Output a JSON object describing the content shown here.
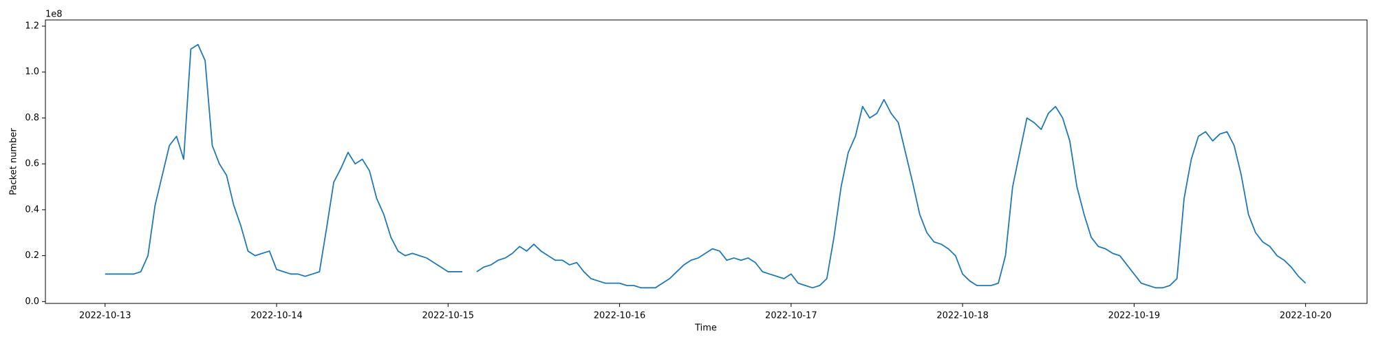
{
  "chart_data": {
    "type": "line",
    "x_label": "Time",
    "y_label": "Packet number",
    "y_offset_label": "1e8",
    "xlim": [
      "2022-10-12T15:39",
      "2022-10-20T08:36"
    ],
    "xticks": [
      "2022-10-13",
      "2022-10-14",
      "2022-10-15",
      "2022-10-16",
      "2022-10-17",
      "2022-10-18",
      "2022-10-19",
      "2022-10-20"
    ],
    "ylim": [
      -0.008,
      1.227
    ],
    "yticks": [
      {
        "value": 0,
        "label": "0.0"
      },
      0.2,
      0.4,
      0.6,
      0.8,
      {
        "value": 1,
        "label": "1.0"
      },
      1.2
    ],
    "grid": false,
    "series": [
      {
        "name": "Packet number",
        "color": "#1f77b4",
        "x": [
          "2022-10-13T00:00",
          "2022-10-13T01:00",
          "2022-10-13T02:00",
          "2022-10-13T03:00",
          "2022-10-13T04:00",
          "2022-10-13T05:00",
          "2022-10-13T06:00",
          "2022-10-13T07:00",
          "2022-10-13T08:00",
          "2022-10-13T09:00",
          "2022-10-13T10:00",
          "2022-10-13T11:00",
          "2022-10-13T12:00",
          "2022-10-13T13:00",
          "2022-10-13T14:00",
          "2022-10-13T15:00",
          "2022-10-13T16:00",
          "2022-10-13T17:00",
          "2022-10-13T18:00",
          "2022-10-13T19:00",
          "2022-10-13T20:00",
          "2022-10-13T21:00",
          "2022-10-13T22:00",
          "2022-10-13T23:00",
          "2022-10-14T00:00",
          "2022-10-14T01:00",
          "2022-10-14T02:00",
          "2022-10-14T03:00",
          "2022-10-14T04:00",
          "2022-10-14T05:00",
          "2022-10-14T06:00",
          "2022-10-14T07:00",
          "2022-10-14T08:00",
          "2022-10-14T09:00",
          "2022-10-14T10:00",
          "2022-10-14T11:00",
          "2022-10-14T12:00",
          "2022-10-14T13:00",
          "2022-10-14T14:00",
          "2022-10-14T15:00",
          "2022-10-14T16:00",
          "2022-10-14T17:00",
          "2022-10-14T18:00",
          "2022-10-14T19:00",
          "2022-10-14T20:00",
          "2022-10-14T21:00",
          "2022-10-14T22:00",
          "2022-10-14T23:00",
          "2022-10-15T00:00",
          "2022-10-15T01:00",
          "2022-10-15T02:00",
          "2022-10-15T03:00",
          "2022-10-15T04:00",
          "2022-10-15T05:00",
          "2022-10-15T06:00",
          "2022-10-15T07:00",
          "2022-10-15T08:00",
          "2022-10-15T09:00",
          "2022-10-15T10:00",
          "2022-10-15T11:00",
          "2022-10-15T12:00",
          "2022-10-15T13:00",
          "2022-10-15T14:00",
          "2022-10-15T15:00",
          "2022-10-15T16:00",
          "2022-10-15T17:00",
          "2022-10-15T18:00",
          "2022-10-15T19:00",
          "2022-10-15T20:00",
          "2022-10-15T21:00",
          "2022-10-15T22:00",
          "2022-10-15T23:00",
          "2022-10-16T00:00",
          "2022-10-16T01:00",
          "2022-10-16T02:00",
          "2022-10-16T03:00",
          "2022-10-16T04:00",
          "2022-10-16T05:00",
          "2022-10-16T06:00",
          "2022-10-16T07:00",
          "2022-10-16T08:00",
          "2022-10-16T09:00",
          "2022-10-16T10:00",
          "2022-10-16T11:00",
          "2022-10-16T12:00",
          "2022-10-16T13:00",
          "2022-10-16T14:00",
          "2022-10-16T15:00",
          "2022-10-16T16:00",
          "2022-10-16T17:00",
          "2022-10-16T18:00",
          "2022-10-16T19:00",
          "2022-10-16T20:00",
          "2022-10-16T21:00",
          "2022-10-16T22:00",
          "2022-10-16T23:00",
          "2022-10-17T00:00",
          "2022-10-17T01:00",
          "2022-10-17T02:00",
          "2022-10-17T03:00",
          "2022-10-17T04:00",
          "2022-10-17T05:00",
          "2022-10-17T06:00",
          "2022-10-17T07:00",
          "2022-10-17T08:00",
          "2022-10-17T09:00",
          "2022-10-17T10:00",
          "2022-10-17T11:00",
          "2022-10-17T12:00",
          "2022-10-17T13:00",
          "2022-10-17T14:00",
          "2022-10-17T15:00",
          "2022-10-17T16:00",
          "2022-10-17T17:00",
          "2022-10-17T18:00",
          "2022-10-17T19:00",
          "2022-10-17T20:00",
          "2022-10-17T21:00",
          "2022-10-17T22:00",
          "2022-10-17T23:00",
          "2022-10-18T00:00",
          "2022-10-18T01:00",
          "2022-10-18T02:00",
          "2022-10-18T03:00",
          "2022-10-18T04:00",
          "2022-10-18T05:00",
          "2022-10-18T06:00",
          "2022-10-18T07:00",
          "2022-10-18T08:00",
          "2022-10-18T09:00",
          "2022-10-18T10:00",
          "2022-10-18T11:00",
          "2022-10-18T12:00",
          "2022-10-18T13:00",
          "2022-10-18T14:00",
          "2022-10-18T15:00",
          "2022-10-18T16:00",
          "2022-10-18T17:00",
          "2022-10-18T18:00",
          "2022-10-18T19:00",
          "2022-10-18T20:00",
          "2022-10-18T21:00",
          "2022-10-18T22:00",
          "2022-10-18T23:00",
          "2022-10-19T00:00",
          "2022-10-19T01:00",
          "2022-10-19T02:00",
          "2022-10-19T03:00",
          "2022-10-19T04:00",
          "2022-10-19T05:00",
          "2022-10-19T06:00",
          "2022-10-19T07:00",
          "2022-10-19T08:00",
          "2022-10-19T09:00",
          "2022-10-19T10:00",
          "2022-10-19T11:00",
          "2022-10-19T12:00",
          "2022-10-19T13:00",
          "2022-10-19T14:00",
          "2022-10-19T15:00",
          "2022-10-19T16:00",
          "2022-10-19T17:00",
          "2022-10-19T18:00",
          "2022-10-19T19:00",
          "2022-10-19T20:00",
          "2022-10-19T21:00",
          "2022-10-19T22:00",
          "2022-10-19T23:00",
          "2022-10-20T00:00"
        ],
        "values": [
          0.12,
          0.12,
          0.12,
          0.12,
          0.12,
          0.13,
          0.2,
          0.42,
          0.55,
          0.68,
          0.72,
          0.62,
          1.1,
          1.12,
          1.05,
          0.68,
          0.6,
          0.55,
          0.42,
          0.33,
          0.22,
          0.2,
          0.21,
          0.22,
          0.14,
          0.13,
          0.12,
          0.12,
          0.11,
          0.12,
          0.13,
          0.32,
          0.52,
          0.58,
          0.65,
          0.6,
          0.62,
          0.57,
          0.45,
          0.38,
          0.28,
          0.22,
          0.2,
          0.21,
          0.2,
          0.19,
          0.17,
          0.15,
          0.13,
          0.13,
          0.13,
          null,
          0.13,
          0.15,
          0.16,
          0.18,
          0.19,
          0.21,
          0.24,
          0.22,
          0.25,
          0.22,
          0.2,
          0.18,
          0.18,
          0.16,
          0.17,
          0.13,
          0.1,
          0.09,
          0.08,
          0.08,
          0.08,
          0.07,
          0.07,
          0.06,
          0.06,
          0.06,
          0.08,
          0.1,
          0.13,
          0.16,
          0.18,
          0.19,
          0.21,
          0.23,
          0.22,
          0.18,
          0.19,
          0.18,
          0.19,
          0.17,
          0.13,
          0.12,
          0.11,
          0.1,
          0.12,
          0.08,
          0.07,
          0.06,
          0.07,
          0.1,
          0.28,
          0.5,
          0.65,
          0.72,
          0.85,
          0.8,
          0.82,
          0.88,
          0.82,
          0.78,
          0.65,
          0.52,
          0.38,
          0.3,
          0.26,
          0.25,
          0.23,
          0.2,
          0.12,
          0.09,
          0.07,
          0.07,
          0.07,
          0.08,
          0.2,
          0.5,
          0.65,
          0.8,
          0.78,
          0.75,
          0.82,
          0.85,
          0.8,
          0.7,
          0.5,
          0.38,
          0.28,
          0.24,
          0.23,
          0.21,
          0.2,
          0.16,
          0.12,
          0.08,
          0.07,
          0.06,
          0.06,
          0.07,
          0.1,
          0.45,
          0.62,
          0.72,
          0.74,
          0.7,
          0.73,
          0.74,
          0.68,
          0.55,
          0.38,
          0.3,
          0.26,
          0.24,
          0.2,
          0.18,
          0.15,
          0.11,
          0.08
        ]
      }
    ]
  }
}
